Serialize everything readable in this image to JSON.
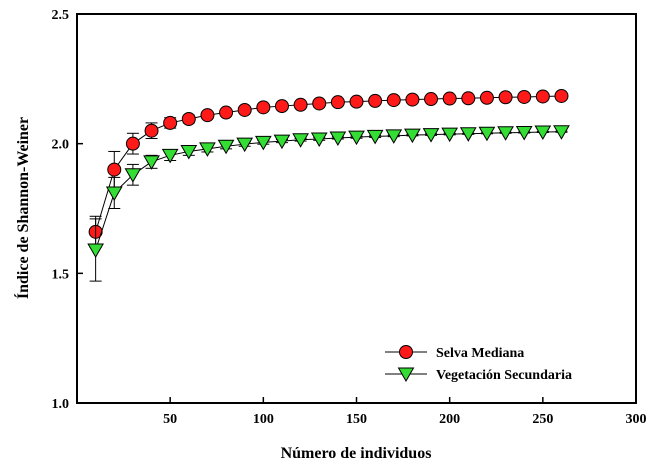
{
  "chart_data": {
    "type": "line",
    "xlabel": "Número de individuos",
    "ylabel": "Índice de Shannon-Weiner",
    "xlim": [
      0,
      300
    ],
    "ylim": [
      1.0,
      2.5
    ],
    "xticks": [
      50,
      100,
      150,
      200,
      250,
      300
    ],
    "yticks": [
      1.0,
      1.5,
      2.0,
      2.5
    ],
    "xtick_labels": [
      "50",
      "100",
      "150",
      "200",
      "250",
      "300"
    ],
    "ytick_labels": [
      "1.0",
      "1.5",
      "2.0",
      "2.5"
    ],
    "grid": false,
    "legend_position": "bottom-right",
    "x": [
      10,
      20,
      30,
      40,
      50,
      60,
      70,
      80,
      90,
      100,
      110,
      120,
      130,
      140,
      150,
      160,
      170,
      180,
      190,
      200,
      210,
      220,
      230,
      240,
      250,
      260
    ],
    "series": [
      {
        "name": "Selva Mediana",
        "marker": "circle",
        "color": "#ff1a1a",
        "values": [
          1.66,
          1.9,
          2.0,
          2.05,
          2.08,
          2.095,
          2.11,
          2.12,
          2.13,
          2.14,
          2.145,
          2.15,
          2.155,
          2.16,
          2.162,
          2.165,
          2.168,
          2.17,
          2.172,
          2.174,
          2.175,
          2.177,
          2.179,
          2.18,
          2.182,
          2.184
        ],
        "error": [
          0.06,
          0.07,
          0.04,
          0.03,
          0.02,
          0.015,
          0.012,
          0.01,
          0.008,
          0.007,
          0.006,
          0.005,
          0.005,
          0.004,
          0.004,
          0.003,
          0.003,
          0.003,
          0.003,
          0.002,
          0.002,
          0.002,
          0.002,
          0.002,
          0.002,
          0.002
        ]
      },
      {
        "name": "Vegetación Secundaria",
        "marker": "triangle-down",
        "color": "#33dd33",
        "values": [
          1.59,
          1.81,
          1.88,
          1.93,
          1.955,
          1.97,
          1.98,
          1.99,
          1.998,
          2.005,
          2.01,
          2.015,
          2.018,
          2.022,
          2.025,
          2.028,
          2.03,
          2.033,
          2.035,
          2.037,
          2.038,
          2.04,
          2.042,
          2.043,
          2.045,
          2.046
        ],
        "error": [
          0.12,
          0.06,
          0.04,
          0.025,
          0.02,
          0.015,
          0.012,
          0.01,
          0.008,
          0.007,
          0.006,
          0.005,
          0.005,
          0.004,
          0.004,
          0.004,
          0.003,
          0.003,
          0.003,
          0.003,
          0.002,
          0.002,
          0.002,
          0.002,
          0.002,
          0.002
        ]
      }
    ]
  }
}
